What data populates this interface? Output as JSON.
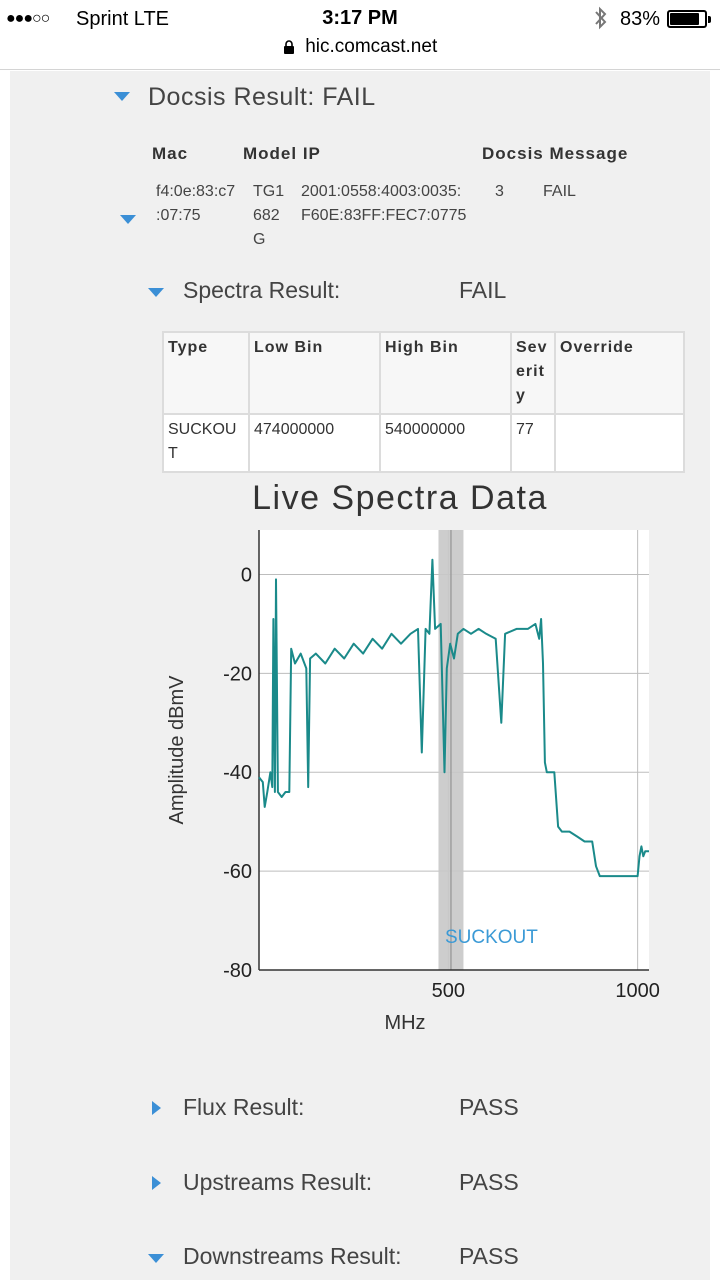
{
  "status_bar": {
    "signal_dots": "●●●○○",
    "carrier": "Sprint   LTE",
    "time": "3:17 PM",
    "battery_percent": "83%"
  },
  "browser": {
    "url": "hic.comcast.net"
  },
  "docsis": {
    "title": "Docsis Result: FAIL",
    "headers": [
      "Mac",
      "Model IP",
      "Docsis Message"
    ],
    "row": {
      "mac_line1": "f4:0e:83:c7",
      "mac_line2": ":07:75",
      "model_line1": "TG1",
      "model_line2": "682",
      "model_line3": "G",
      "ip_line1": "2001:0558:4003:0035:",
      "ip_line2": "F60E:83FF:FEC7:0775",
      "count": "3",
      "message": "FAIL"
    }
  },
  "spectra": {
    "label": "Spectra Result:",
    "value": "FAIL",
    "table_headers": [
      "Type",
      "Low Bin",
      "High Bin",
      "Severity",
      "Override"
    ],
    "table_rows": [
      {
        "type": "SUCKOUT",
        "low_bin": "474000000",
        "high_bin": "540000000",
        "severity": "77",
        "override": ""
      }
    ]
  },
  "chart_data": {
    "type": "line",
    "title": "Live Spectra Data",
    "xlabel": "MHz",
    "ylabel": "Amplitude dBmV",
    "xlim": [
      0,
      1030
    ],
    "ylim": [
      -80,
      9
    ],
    "xticks": [
      500,
      1000
    ],
    "yticks": [
      0,
      -20,
      -40,
      -60,
      -80
    ],
    "grid": true,
    "line_color": "#1a8a8a",
    "annotation": {
      "label": "SUCKOUT",
      "x_start": 474,
      "x_end": 540,
      "marker_x": 507,
      "color": "#3b9ad6",
      "band_color": "#c8c8c8"
    },
    "series": [
      {
        "points": [
          [
            0,
            -41
          ],
          [
            10,
            -42
          ],
          [
            15,
            -47
          ],
          [
            22,
            -44
          ],
          [
            30,
            -40
          ],
          [
            35,
            -43
          ],
          [
            38,
            -9
          ],
          [
            42,
            -44
          ],
          [
            45,
            -1
          ],
          [
            50,
            -44
          ],
          [
            60,
            -45
          ],
          [
            70,
            -44
          ],
          [
            80,
            -44
          ],
          [
            85,
            -15
          ],
          [
            95,
            -18
          ],
          [
            110,
            -16
          ],
          [
            125,
            -19
          ],
          [
            130,
            -43
          ],
          [
            135,
            -17
          ],
          [
            150,
            -16
          ],
          [
            175,
            -18
          ],
          [
            200,
            -15
          ],
          [
            225,
            -17
          ],
          [
            250,
            -14
          ],
          [
            275,
            -16
          ],
          [
            300,
            -13
          ],
          [
            325,
            -15
          ],
          [
            350,
            -12
          ],
          [
            375,
            -14
          ],
          [
            400,
            -12
          ],
          [
            420,
            -11
          ],
          [
            430,
            -36
          ],
          [
            440,
            -11
          ],
          [
            450,
            -12
          ],
          [
            458,
            3
          ],
          [
            465,
            -11
          ],
          [
            480,
            -10
          ],
          [
            490,
            -40
          ],
          [
            496,
            -19
          ],
          [
            505,
            -14
          ],
          [
            515,
            -17
          ],
          [
            525,
            -12
          ],
          [
            540,
            -11
          ],
          [
            560,
            -12
          ],
          [
            580,
            -11
          ],
          [
            600,
            -12
          ],
          [
            625,
            -13
          ],
          [
            640,
            -30
          ],
          [
            650,
            -12
          ],
          [
            680,
            -11
          ],
          [
            710,
            -11
          ],
          [
            730,
            -10
          ],
          [
            740,
            -13
          ],
          [
            745,
            -9
          ],
          [
            750,
            -18
          ],
          [
            755,
            -38
          ],
          [
            760,
            -40
          ],
          [
            780,
            -40
          ],
          [
            790,
            -51
          ],
          [
            800,
            -52
          ],
          [
            820,
            -52
          ],
          [
            840,
            -53
          ],
          [
            860,
            -54
          ],
          [
            880,
            -54
          ],
          [
            890,
            -59
          ],
          [
            900,
            -61
          ],
          [
            920,
            -61
          ],
          [
            950,
            -61
          ],
          [
            970,
            -61
          ],
          [
            990,
            -61
          ],
          [
            1000,
            -61
          ],
          [
            1005,
            -57
          ],
          [
            1010,
            -55
          ],
          [
            1015,
            -57
          ],
          [
            1020,
            -56
          ],
          [
            1030,
            -56
          ]
        ]
      }
    ]
  },
  "collapsed_rows": [
    {
      "label": "Flux Result:",
      "value": "PASS"
    },
    {
      "label": "Upstreams Result:",
      "value": "PASS"
    },
    {
      "label": "Downstreams Result:",
      "value": "PASS"
    }
  ]
}
